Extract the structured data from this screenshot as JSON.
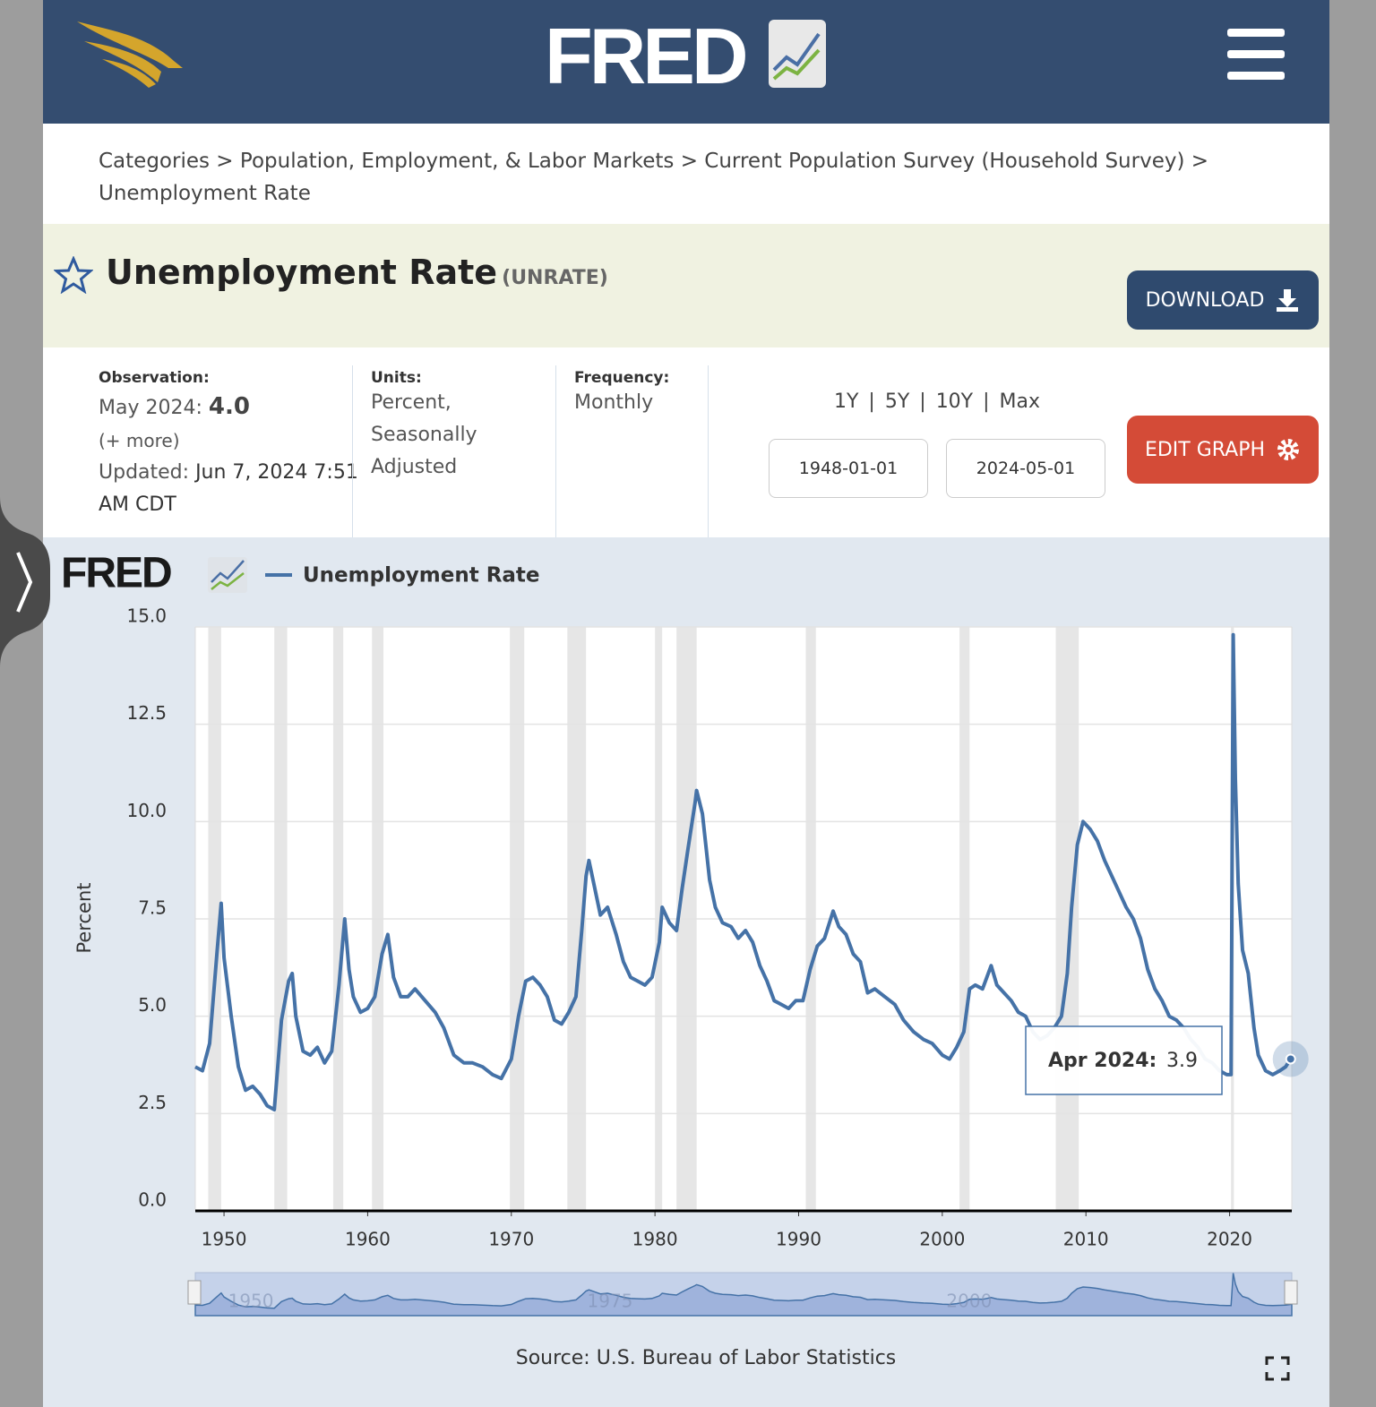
{
  "header": {
    "logo": "FRED"
  },
  "breadcrumb": {
    "items": [
      "Categories",
      "Population, Employment, & Labor Markets",
      "Current Population Survey (Household Survey)",
      "Unemployment Rate"
    ],
    "separator": ">"
  },
  "series_header": {
    "title": "Unemployment Rate",
    "series_id": "(UNRATE)",
    "download": "DOWNLOAD"
  },
  "metadata": {
    "observation_label": "Observation:",
    "observation_date": "May 2024:",
    "observation_value": "4.0",
    "more": "(+ more)",
    "updated_label": "Updated:",
    "updated": "Jun 7, 2024",
    "updated_time": "7:51 AM CDT",
    "units_label": "Units:",
    "units": "Percent, Seasonally Adjusted",
    "frequency_label": "Frequency:",
    "frequency": "Monthly",
    "ranges": [
      "1Y",
      "5Y",
      "10Y",
      "Max"
    ],
    "range_separator": "|",
    "start_date": "1948-01-01",
    "end_date": "2024-05-01",
    "edit_graph": "EDIT GRAPH"
  },
  "chart_data": {
    "type": "line",
    "logo": "FRED",
    "y_label": "Percent",
    "source": "Source: U.S. Bureau of Labor Statistics",
    "x": [
      1948.0,
      1948.5,
      1949.0,
      1949.5,
      1949.8,
      1950.0,
      1950.5,
      1951.0,
      1951.5,
      1952.0,
      1952.5,
      1953.0,
      1953.5,
      1954.0,
      1954.5,
      1954.75,
      1955.0,
      1955.5,
      1956.0,
      1956.5,
      1957.0,
      1957.5,
      1958.0,
      1958.4,
      1958.7,
      1959.0,
      1959.5,
      1960.0,
      1960.5,
      1961.0,
      1961.4,
      1961.8,
      1962.3,
      1962.8,
      1963.3,
      1964.0,
      1964.7,
      1965.3,
      1966.0,
      1966.7,
      1967.3,
      1968.0,
      1968.7,
      1969.3,
      1970.0,
      1970.5,
      1971.0,
      1971.5,
      1972.0,
      1972.5,
      1973.0,
      1973.5,
      1974.0,
      1974.5,
      1974.9,
      1975.2,
      1975.4,
      1975.8,
      1976.2,
      1976.7,
      1977.3,
      1977.8,
      1978.3,
      1978.8,
      1979.3,
      1979.8,
      1980.3,
      1980.5,
      1981.0,
      1981.5,
      1981.9,
      1982.3,
      1982.8,
      1982.9,
      1983.3,
      1983.8,
      1984.2,
      1984.7,
      1985.3,
      1985.8,
      1986.3,
      1986.8,
      1987.3,
      1987.8,
      1988.3,
      1988.8,
      1989.3,
      1989.8,
      1990.3,
      1990.8,
      1991.3,
      1991.8,
      1992.4,
      1992.8,
      1993.3,
      1993.8,
      1994.3,
      1994.8,
      1995.3,
      1996.0,
      1996.7,
      1997.3,
      1998.0,
      1998.7,
      1999.3,
      2000.0,
      2000.5,
      2001.0,
      2001.5,
      2001.9,
      2002.3,
      2002.8,
      2003.4,
      2003.8,
      2004.3,
      2004.8,
      2005.3,
      2005.8,
      2006.3,
      2006.8,
      2007.3,
      2007.8,
      2008.3,
      2008.7,
      2009.0,
      2009.4,
      2009.8,
      2010.3,
      2010.8,
      2011.3,
      2011.8,
      2012.3,
      2012.8,
      2013.3,
      2013.8,
      2014.3,
      2014.8,
      2015.3,
      2015.8,
      2016.3,
      2016.8,
      2017.3,
      2017.8,
      2018.3,
      2018.8,
      2019.3,
      2019.8,
      2020.1,
      2020.25,
      2020.4,
      2020.6,
      2020.9,
      2021.3,
      2021.7,
      2022.0,
      2022.5,
      2023.0,
      2023.5,
      2023.9,
      2024.25,
      2024.33
    ],
    "series": [
      {
        "name": "Unemployment Rate",
        "color": "#4572a7",
        "values": [
          3.7,
          3.6,
          4.3,
          6.6,
          7.9,
          6.5,
          5.0,
          3.7,
          3.1,
          3.2,
          3.0,
          2.7,
          2.6,
          4.9,
          5.9,
          6.1,
          5.0,
          4.1,
          4.0,
          4.2,
          3.8,
          4.1,
          5.8,
          7.5,
          6.2,
          5.5,
          5.1,
          5.2,
          5.5,
          6.6,
          7.1,
          6.0,
          5.5,
          5.5,
          5.7,
          5.4,
          5.1,
          4.7,
          4.0,
          3.8,
          3.8,
          3.7,
          3.5,
          3.4,
          3.9,
          5.0,
          5.9,
          6.0,
          5.8,
          5.5,
          4.9,
          4.8,
          5.1,
          5.5,
          7.2,
          8.6,
          9.0,
          8.3,
          7.6,
          7.8,
          7.1,
          6.4,
          6.0,
          5.9,
          5.8,
          6.0,
          6.9,
          7.8,
          7.4,
          7.2,
          8.3,
          9.3,
          10.5,
          10.8,
          10.2,
          8.5,
          7.8,
          7.4,
          7.3,
          7.0,
          7.2,
          6.9,
          6.3,
          5.9,
          5.4,
          5.3,
          5.2,
          5.4,
          5.4,
          6.2,
          6.8,
          7.0,
          7.7,
          7.3,
          7.1,
          6.6,
          6.4,
          5.6,
          5.7,
          5.5,
          5.3,
          4.9,
          4.6,
          4.4,
          4.3,
          4.0,
          3.9,
          4.2,
          4.6,
          5.7,
          5.8,
          5.7,
          6.3,
          5.8,
          5.6,
          5.4,
          5.1,
          5.0,
          4.6,
          4.4,
          4.5,
          4.7,
          5.0,
          6.1,
          7.8,
          9.4,
          10.0,
          9.8,
          9.5,
          9.0,
          8.6,
          8.2,
          7.8,
          7.5,
          7.0,
          6.2,
          5.7,
          5.4,
          5.0,
          4.9,
          4.7,
          4.4,
          4.2,
          3.9,
          3.8,
          3.6,
          3.5,
          3.5,
          14.8,
          11.1,
          8.4,
          6.7,
          6.1,
          4.7,
          4.0,
          3.6,
          3.5,
          3.6,
          3.7,
          3.9,
          4.0
        ]
      }
    ],
    "recessions": [
      [
        1948.9,
        1949.8
      ],
      [
        1953.5,
        1954.4
      ],
      [
        1957.6,
        1958.3
      ],
      [
        1960.3,
        1961.1
      ],
      [
        1969.9,
        1970.9
      ],
      [
        1973.9,
        1975.2
      ],
      [
        1980.0,
        1980.5
      ],
      [
        1981.5,
        1982.9
      ],
      [
        1990.5,
        1991.2
      ],
      [
        2001.2,
        2001.9
      ],
      [
        2007.9,
        2009.5
      ],
      [
        2020.1,
        2020.3
      ]
    ],
    "recession_color": "#e6e6e6",
    "xlim": [
      1948,
      2024.33
    ],
    "xticks": [
      1950,
      1960,
      1970,
      1980,
      1990,
      2000,
      2010,
      2020
    ],
    "ylim": [
      0,
      15
    ],
    "yticks": [
      {
        "value": 0,
        "label": "0.0"
      },
      {
        "value": 2.5,
        "label": "2.5"
      },
      {
        "value": 5,
        "label": "5.0"
      },
      {
        "value": 7.5,
        "label": "7.5"
      },
      {
        "value": 10,
        "label": "10.0"
      },
      {
        "value": 12.5,
        "label": "12.5"
      },
      {
        "value": 15,
        "label": "15.0"
      }
    ],
    "grid": true,
    "tooltip": {
      "label": "Apr 2024:",
      "value": 3.9,
      "x": 2024.25
    },
    "navigator_ticks": [
      1950,
      1975,
      2000
    ]
  }
}
